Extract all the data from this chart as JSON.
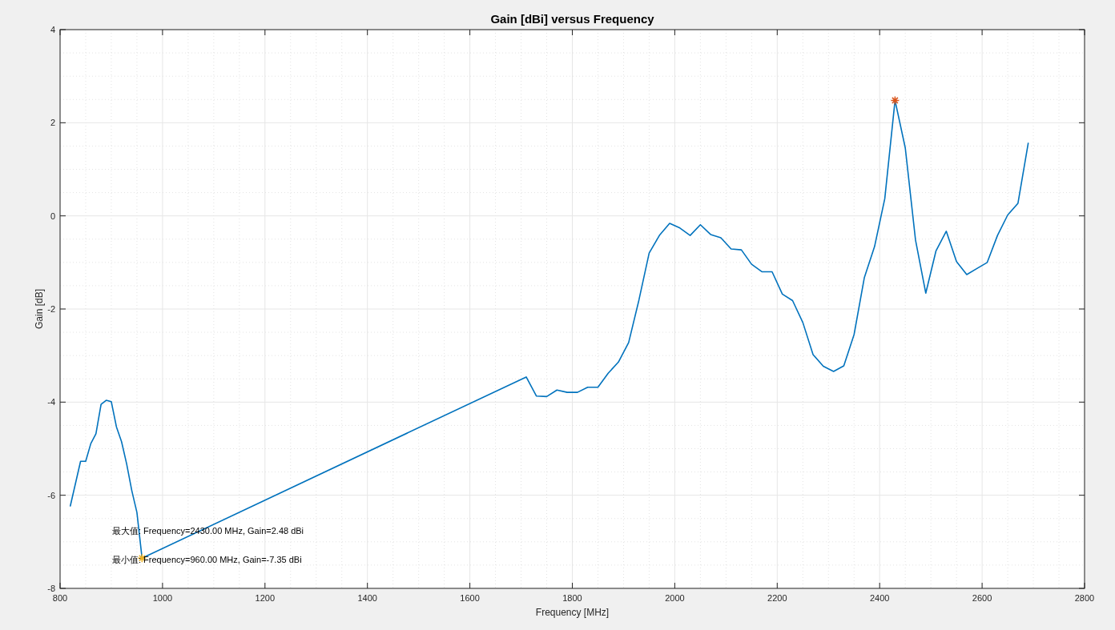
{
  "chart_data": {
    "type": "line",
    "title": "Gain [dBi] versus Frequency",
    "xlabel": "Frequency [MHz]",
    "ylabel": "Gain [dB]",
    "xlim": [
      800,
      2800
    ],
    "xticks": [
      800,
      1000,
      1200,
      1400,
      1600,
      1800,
      2000,
      2200,
      2400,
      2600,
      2800
    ],
    "ylim": [
      -8,
      4
    ],
    "yticks": [
      -8,
      -6,
      -4,
      -2,
      0,
      2,
      4
    ],
    "grid": true,
    "series": [
      {
        "color": "#0072bd",
        "marker": "none",
        "line_style": "solid",
        "x": [
          820,
          840,
          850,
          860,
          870,
          880,
          890,
          900,
          910,
          920,
          930,
          940,
          950,
          960,
          1710,
          1730,
          1750,
          1770,
          1790,
          1810,
          1830,
          1850,
          1870,
          1890,
          1910,
          1930,
          1950,
          1970,
          1990,
          2010,
          2030,
          2050,
          2070,
          2090,
          2110,
          2130,
          2150,
          2170,
          2190,
          2210,
          2230,
          2250,
          2270,
          2290,
          2310,
          2330,
          2350,
          2370,
          2390,
          2410,
          2430,
          2450,
          2470,
          2490,
          2510,
          2530,
          2550,
          2570,
          2590,
          2610,
          2630,
          2650,
          2670,
          2690
        ],
        "values": [
          -6.23,
          -5.27,
          -5.27,
          -4.89,
          -4.68,
          -4.05,
          -3.96,
          -3.99,
          -4.53,
          -4.85,
          -5.33,
          -5.9,
          -6.37,
          -7.35,
          -3.46,
          -3.87,
          -3.88,
          -3.74,
          -3.79,
          -3.79,
          -3.68,
          -3.68,
          -3.38,
          -3.14,
          -2.72,
          -1.81,
          -0.8,
          -0.42,
          -0.16,
          -0.26,
          -0.42,
          -0.19,
          -0.4,
          -0.47,
          -0.71,
          -0.73,
          -1.04,
          -1.2,
          -1.2,
          -1.68,
          -1.82,
          -2.29,
          -2.98,
          -3.23,
          -3.34,
          -3.22,
          -2.55,
          -1.33,
          -0.66,
          0.37,
          2.48,
          1.46,
          -0.52,
          -1.66,
          -0.75,
          -0.33,
          -0.98,
          -1.26,
          -1.13,
          -1.0,
          -0.42,
          0.02,
          0.27,
          1.56
        ]
      },
      {
        "type": "scatter",
        "color": "#d95319",
        "marker": "cross",
        "x": [
          2430
        ],
        "values": [
          2.48
        ]
      },
      {
        "type": "scatter",
        "color": "#edb120",
        "marker": "cross",
        "x": [
          960
        ],
        "values": [
          -7.35
        ]
      }
    ],
    "annotations": [
      "最大值: Frequency=2430.00 MHz, Gain=2.48 dBi",
      "最小值: Frequency=960.00 MHz, Gain=-7.35 dBi"
    ]
  }
}
